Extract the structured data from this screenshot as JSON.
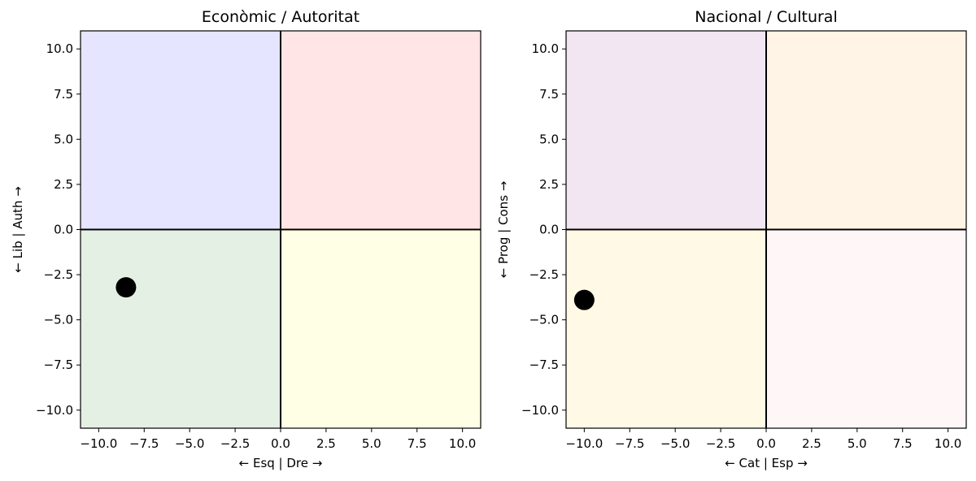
{
  "chart_data": [
    {
      "type": "scatter",
      "title": "Econòmic / Autoritat",
      "xlabel": "← Esq | Dre →",
      "ylabel": "← Lib | Auth →",
      "xlim": [
        -11,
        11
      ],
      "ylim": [
        -11,
        11
      ],
      "xticks": [
        -10,
        -7.5,
        -5,
        -2.5,
        0,
        2.5,
        5,
        7.5,
        10
      ],
      "yticks": [
        -10,
        -7.5,
        -5,
        -2.5,
        0,
        2.5,
        5,
        7.5,
        10
      ],
      "quadrant_colors": {
        "top_left": "#e5e5ff",
        "top_right": "#ffe5e5",
        "bottom_left": "#e5f0e5",
        "bottom_right": "#ffffe5"
      },
      "points": [
        {
          "x": -8.5,
          "y": -3.2
        }
      ],
      "point_color": "#000000",
      "grid": false
    },
    {
      "type": "scatter",
      "title": "Nacional / Cultural",
      "xlabel": "← Cat | Esp →",
      "ylabel": "← Prog | Cons →",
      "xlim": [
        -11,
        11
      ],
      "ylim": [
        -11,
        11
      ],
      "xticks": [
        -10,
        -7.5,
        -5,
        -2.5,
        0,
        2.5,
        5,
        7.5,
        10
      ],
      "yticks": [
        -10,
        -7.5,
        -5,
        -2.5,
        0,
        2.5,
        5,
        7.5,
        10
      ],
      "quadrant_colors": {
        "top_left": "#f1e6f2",
        "top_right": "#fff4e5",
        "bottom_left": "#fff9e5",
        "bottom_right": "#fff7f7"
      },
      "points": [
        {
          "x": -10.0,
          "y": -3.9
        }
      ],
      "point_color": "#000000",
      "grid": false
    }
  ]
}
